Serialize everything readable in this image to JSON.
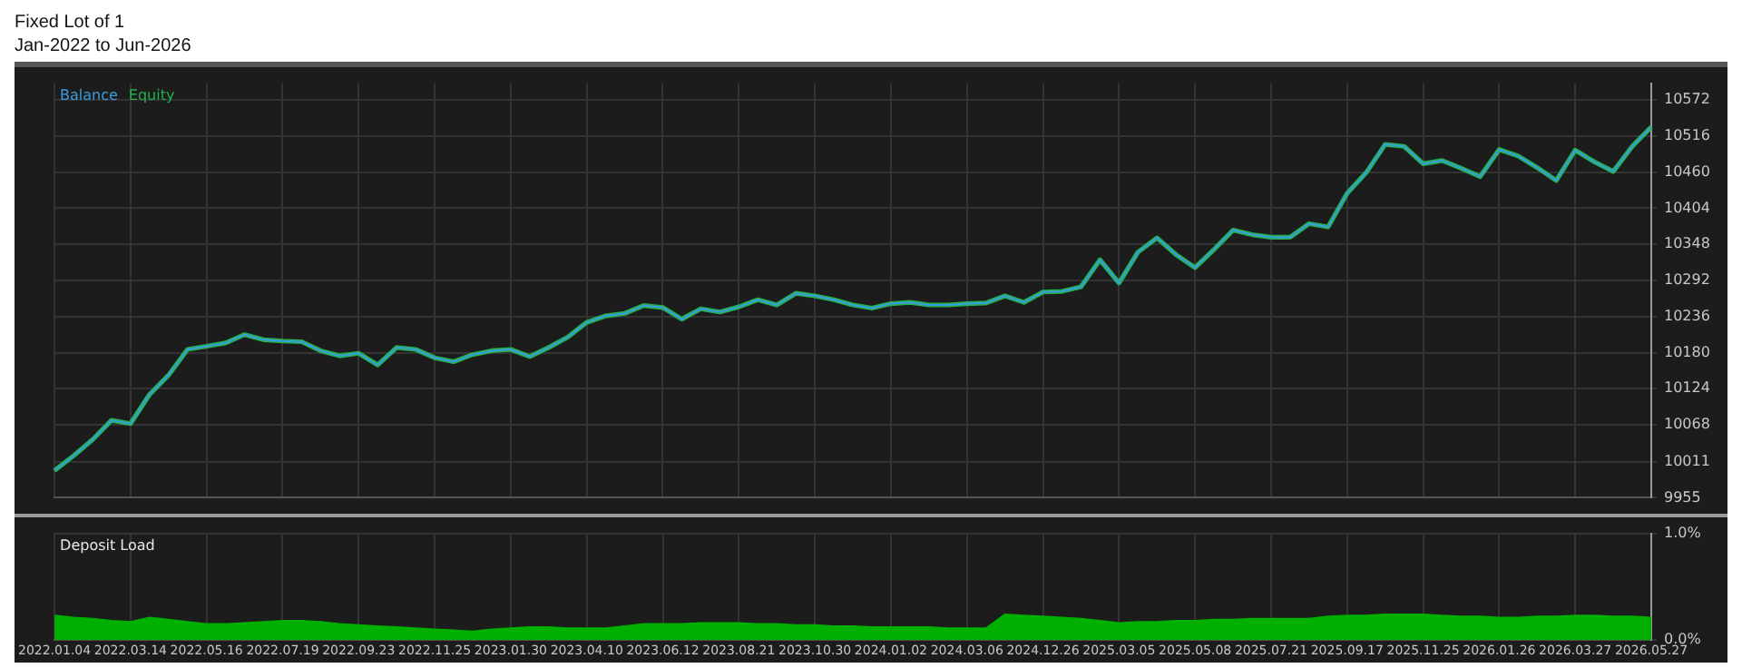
{
  "chart_data": [
    {
      "type": "line",
      "title": "Fixed Lot of 1",
      "subtitle": "Jan-2022 to Jun-2026",
      "categories": [
        "2022.01.04",
        null,
        null,
        null,
        "2022.03.14",
        null,
        null,
        null,
        "2022.05.16",
        null,
        null,
        null,
        "2022.07.19",
        null,
        null,
        null,
        "2022.09.23",
        null,
        null,
        null,
        "2022.11.25",
        null,
        null,
        null,
        "2023.01.30",
        null,
        null,
        null,
        "2023.04.10",
        null,
        null,
        null,
        "2023.06.12",
        null,
        null,
        null,
        "2023.08.21",
        null,
        null,
        null,
        "2023.10.30",
        null,
        null,
        null,
        "2024.01.02",
        null,
        null,
        null,
        "2024.03.06",
        null,
        null,
        null,
        "2024.12.26",
        null,
        null,
        null,
        "2025.03.05",
        null,
        null,
        null,
        "2025.05.08",
        null,
        null,
        null,
        "2025.07.21",
        null,
        null,
        null,
        "2025.09.17",
        null,
        null,
        null,
        "2025.11.25",
        null,
        null,
        null,
        "2026.01.26",
        null,
        null,
        null,
        "2026.03.27",
        null,
        null,
        null,
        "2026.05.27"
      ],
      "series": [
        {
          "name": "Balance",
          "color": "#3d9be0",
          "values": [
            9997,
            10020,
            10045,
            10075,
            10070,
            10115,
            10145,
            10185,
            10190,
            10195,
            10208,
            10200,
            10198,
            10197,
            10183,
            10175,
            10179,
            10161,
            10188,
            10185,
            10172,
            10166,
            10177,
            10183,
            10185,
            10174,
            10188,
            10204,
            10227,
            10237,
            10241,
            10253,
            10250,
            10232,
            10248,
            10243,
            10251,
            10262,
            10254,
            10272,
            10268,
            10262,
            10254,
            10249,
            10256,
            10258,
            10254,
            10254,
            10256,
            10257,
            10268,
            10258,
            10274,
            10275,
            10282,
            10324,
            10288,
            10336,
            10358,
            10332,
            10312,
            10340,
            10370,
            10363,
            10359,
            10359,
            10380,
            10375,
            10427,
            10459,
            10503,
            10500,
            10473,
            10478,
            10466,
            10453,
            10495,
            10485,
            10467,
            10447,
            10494,
            10476,
            10461,
            10500,
            10530
          ]
        },
        {
          "name": "Equity",
          "color": "#22b14c",
          "values": [
            9997,
            10020,
            10045,
            10075,
            10070,
            10115,
            10145,
            10185,
            10190,
            10195,
            10208,
            10200,
            10198,
            10197,
            10183,
            10175,
            10179,
            10161,
            10188,
            10185,
            10172,
            10166,
            10177,
            10183,
            10185,
            10174,
            10188,
            10204,
            10227,
            10237,
            10241,
            10253,
            10250,
            10232,
            10248,
            10243,
            10251,
            10262,
            10254,
            10272,
            10268,
            10262,
            10254,
            10249,
            10256,
            10258,
            10254,
            10254,
            10256,
            10257,
            10268,
            10258,
            10274,
            10275,
            10282,
            10324,
            10288,
            10336,
            10358,
            10332,
            10312,
            10340,
            10370,
            10363,
            10359,
            10359,
            10380,
            10375,
            10427,
            10459,
            10503,
            10500,
            10473,
            10478,
            10466,
            10453,
            10495,
            10485,
            10467,
            10447,
            10494,
            10476,
            10461,
            10500,
            10530
          ]
        }
      ],
      "ylim": [
        9955,
        10598
      ],
      "yticks": [
        9955,
        10011,
        10068,
        10124,
        10180,
        10236,
        10292,
        10348,
        10404,
        10460,
        10516,
        10572
      ],
      "tick_labels": "y",
      "grid": true,
      "legend": "top left",
      "marker": "none"
    },
    {
      "type": "area",
      "title": "Deposit Load",
      "categories": [
        "2022.01.04",
        null,
        null,
        null,
        "2022.03.14",
        null,
        null,
        null,
        "2022.05.16",
        null,
        null,
        null,
        "2022.07.19",
        null,
        null,
        null,
        "2022.09.23",
        null,
        null,
        null,
        "2022.11.25",
        null,
        null,
        null,
        "2023.01.30",
        null,
        null,
        null,
        "2023.04.10",
        null,
        null,
        null,
        "2023.06.12",
        null,
        null,
        null,
        "2023.08.21",
        null,
        null,
        null,
        "2023.10.30",
        null,
        null,
        null,
        "2024.01.02",
        null,
        null,
        null,
        "2024.03.06",
        null,
        null,
        null,
        "2024.12.26",
        null,
        null,
        null,
        "2025.03.05",
        null,
        null,
        null,
        "2025.05.08",
        null,
        null,
        null,
        "2025.07.21",
        null,
        null,
        null,
        "2025.09.17",
        null,
        null,
        null,
        "2025.11.25",
        null,
        null,
        null,
        "2026.01.26",
        null,
        null,
        null,
        "2026.03.27",
        null,
        null,
        null,
        "2026.05.27"
      ],
      "values": [
        0.23,
        0.21,
        0.2,
        0.18,
        0.17,
        0.21,
        0.19,
        0.17,
        0.15,
        0.15,
        0.16,
        0.17,
        0.18,
        0.18,
        0.17,
        0.15,
        0.14,
        0.13,
        0.12,
        0.11,
        0.1,
        0.09,
        0.08,
        0.1,
        0.11,
        0.12,
        0.12,
        0.11,
        0.11,
        0.11,
        0.13,
        0.15,
        0.15,
        0.15,
        0.16,
        0.16,
        0.16,
        0.15,
        0.15,
        0.14,
        0.14,
        0.13,
        0.13,
        0.12,
        0.12,
        0.12,
        0.12,
        0.11,
        0.11,
        0.11,
        0.24,
        0.23,
        0.22,
        0.21,
        0.2,
        0.18,
        0.16,
        0.17,
        0.17,
        0.18,
        0.18,
        0.19,
        0.19,
        0.2,
        0.2,
        0.2,
        0.2,
        0.22,
        0.23,
        0.23,
        0.24,
        0.24,
        0.24,
        0.23,
        0.22,
        0.22,
        0.21,
        0.21,
        0.22,
        0.22,
        0.23,
        0.23,
        0.22,
        0.22,
        0.21
      ],
      "color": "#00b000",
      "ylim": [
        0,
        1
      ],
      "yticks": [
        {
          "value": 0,
          "label": "0.0%"
        },
        {
          "value": 1,
          "label": "1.0%"
        }
      ],
      "grid": true,
      "marker": "none"
    }
  ]
}
